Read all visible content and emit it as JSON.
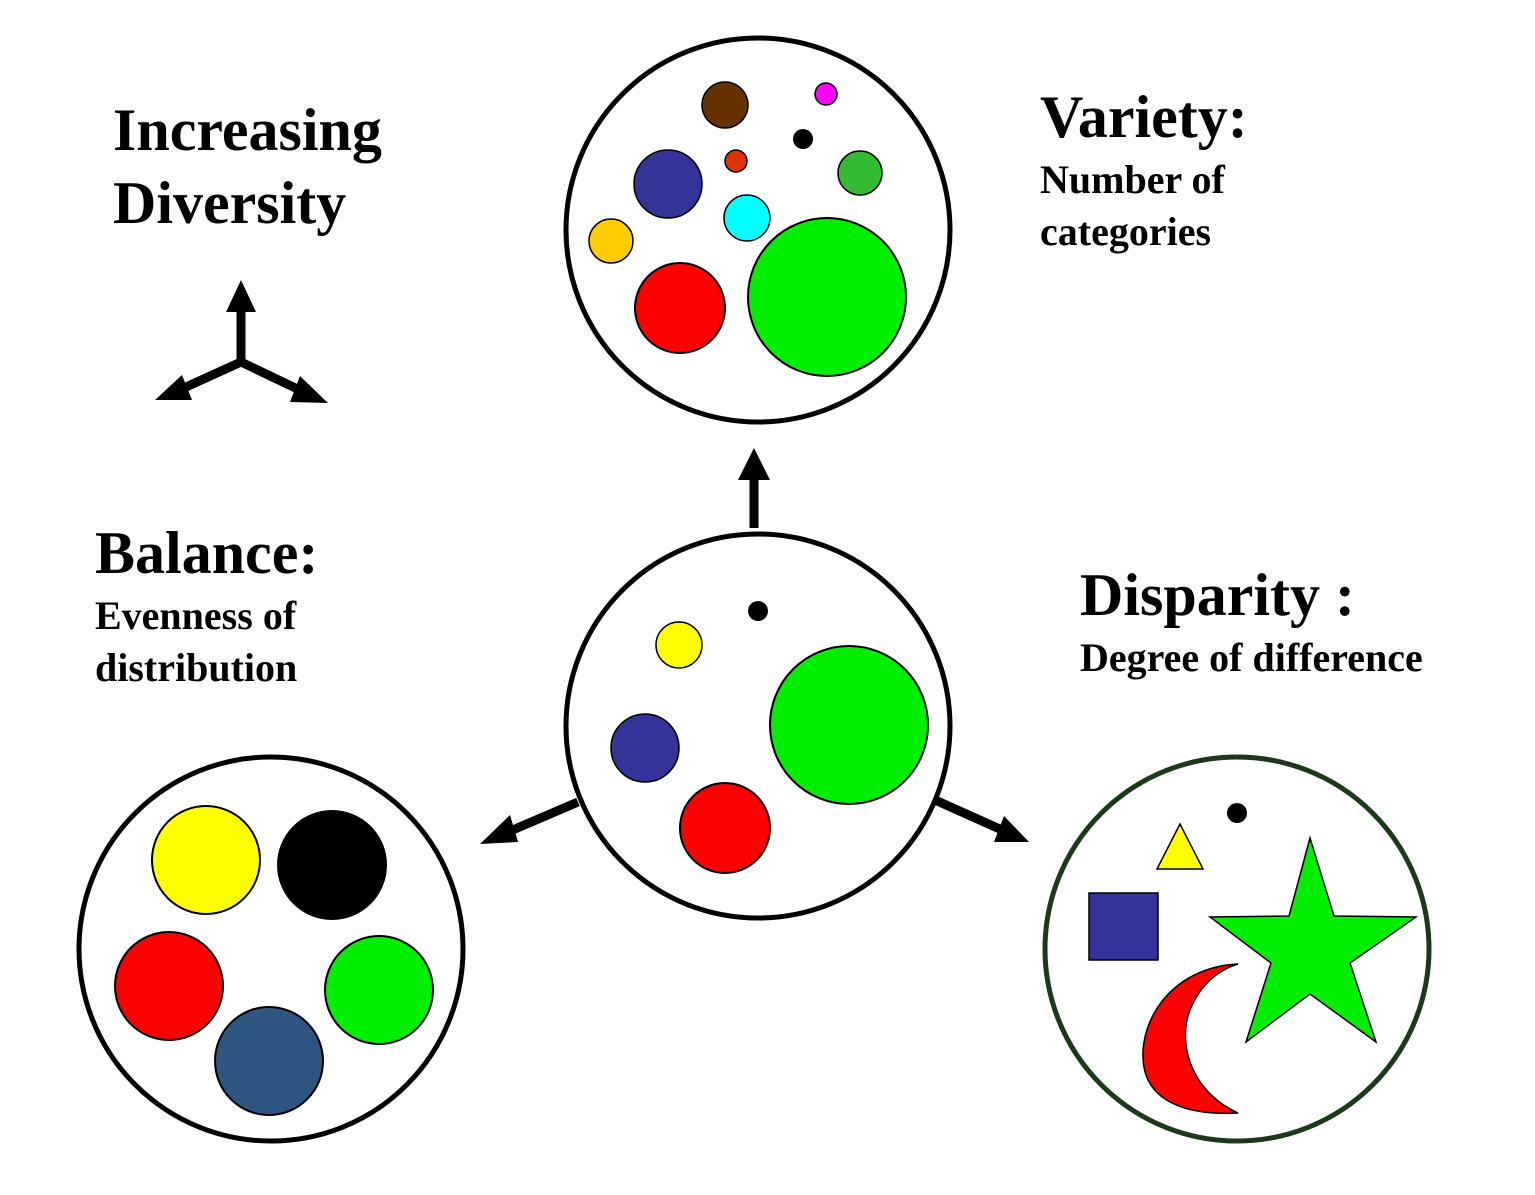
{
  "title": {
    "line1": "Increasing",
    "line2": "Diversity"
  },
  "variety": {
    "heading": "Variety:",
    "desc_line1": "Number of",
    "desc_line2": "categories"
  },
  "balance": {
    "heading": "Balance:",
    "desc_line1": "Evenness of",
    "desc_line2": "distribution"
  },
  "disparity": {
    "heading": "Disparity :",
    "desc_line1": "Degree of difference"
  },
  "colors": {
    "outline": "#000000",
    "disparity_outline": "#1a3a1a",
    "green": "#00ee00",
    "red": "#ff0000",
    "yellow": "#ffff00",
    "navy": "#333399",
    "steel_blue": "#2e5580",
    "black": "#000000",
    "brown": "#663300",
    "magenta": "#ff00ff",
    "orange_red": "#dd3300",
    "leaf_green": "#33bb33",
    "cyan": "#00ffff",
    "amber": "#ffcc00"
  }
}
